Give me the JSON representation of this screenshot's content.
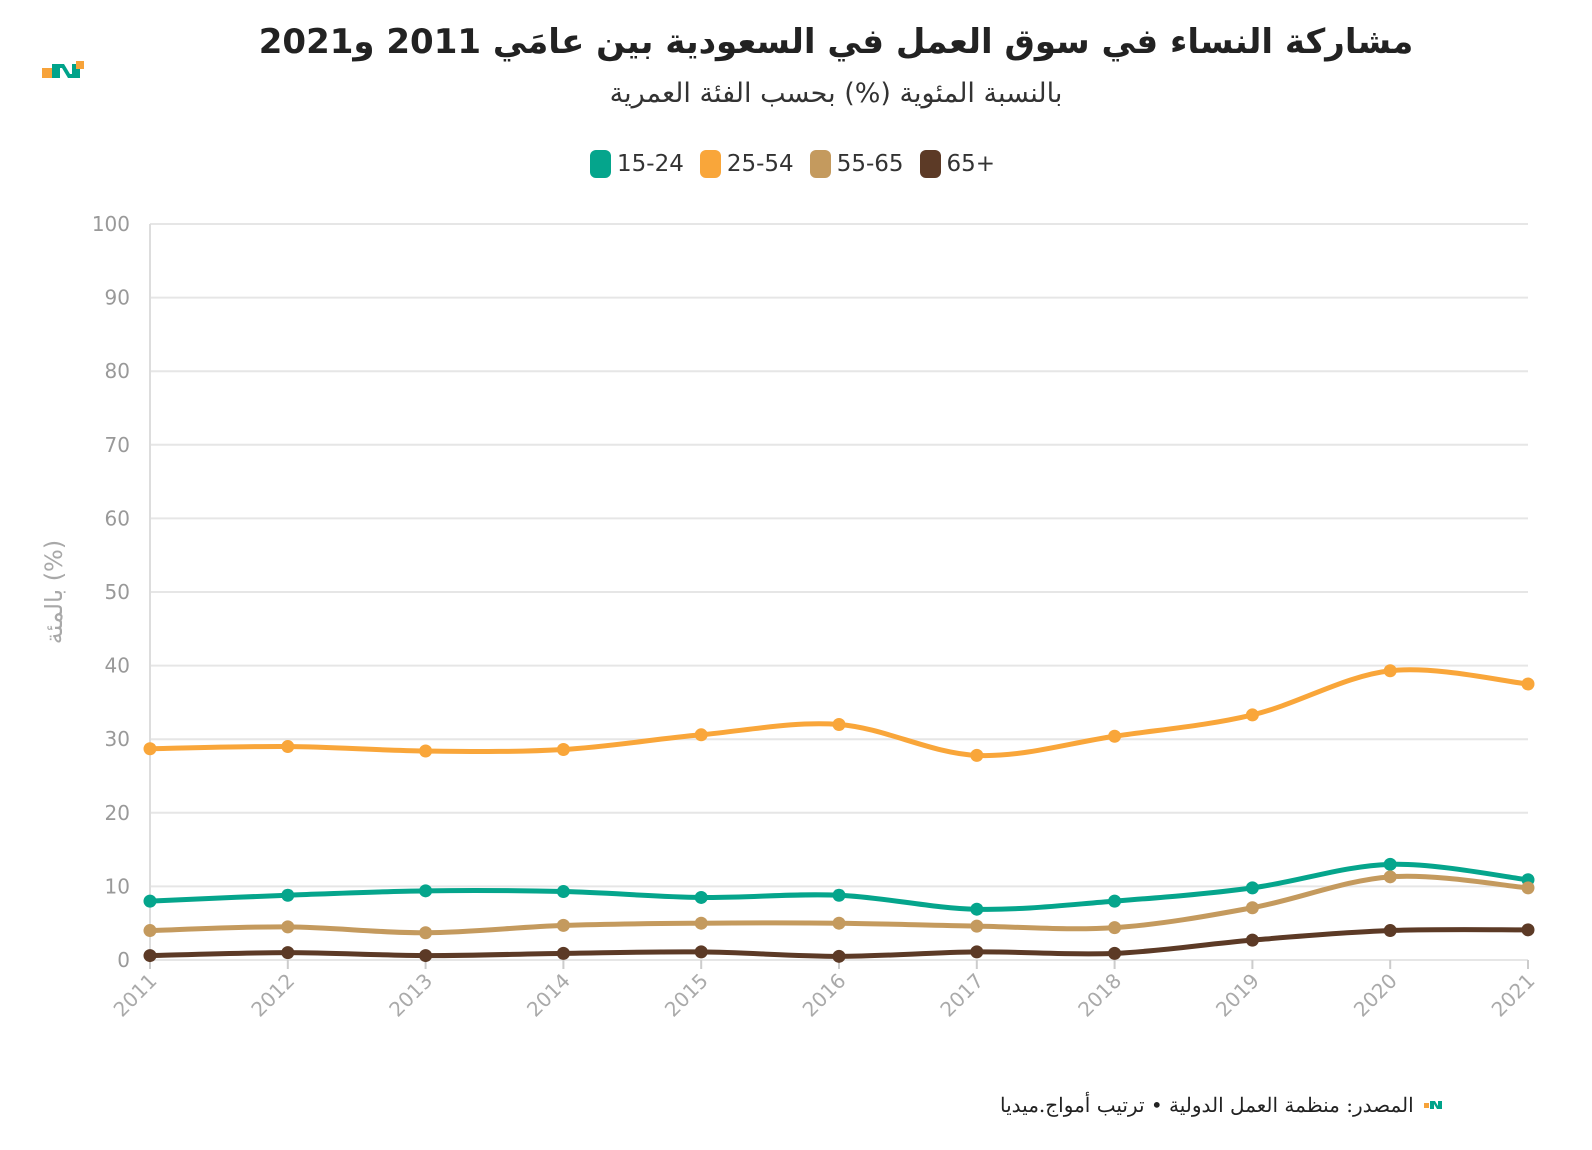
{
  "header": {
    "title": "مشاركة النساء في سوق العمل في السعودية بين عامَي 2011 و2021",
    "subtitle": "بالنسبة المئوية (%) بحسب الفئة العمرية"
  },
  "footer": {
    "source": "المصدر: منظمة العمل الدولية • ترتيب أمواج.ميديا"
  },
  "brand": {
    "logo_name": "amwaj-logo-icon",
    "teal": "#00a38a",
    "orange": "#f7a33a"
  },
  "chart_data": {
    "type": "line",
    "title": "مشاركة النساء في سوق العمل في السعودية بين عامَي 2011 و2021",
    "subtitle": "بالنسبة المئوية (%) بحسب الفئة العمرية",
    "xlabel": "",
    "ylabel": "بالمئة (%)",
    "ylim": [
      0,
      100
    ],
    "yticks": [
      0,
      10,
      20,
      30,
      40,
      50,
      60,
      70,
      80,
      90,
      100
    ],
    "grid": true,
    "legend_position": "top-center",
    "x": [
      "2011",
      "2012",
      "2013",
      "2014",
      "2015",
      "2016",
      "2017",
      "2018",
      "2019",
      "2020",
      "2021"
    ],
    "series": [
      {
        "name": "15-24",
        "color": "#05a58c",
        "values": [
          8.0,
          8.8,
          9.4,
          9.3,
          8.5,
          8.8,
          6.9,
          8.0,
          9.8,
          13.0,
          10.9
        ]
      },
      {
        "name": "25-54",
        "color": "#f9a63a",
        "values": [
          28.7,
          29.0,
          28.4,
          28.6,
          30.6,
          32.0,
          27.8,
          30.4,
          33.3,
          39.3,
          37.5
        ]
      },
      {
        "name": "55-65",
        "color": "#c49a5e",
        "values": [
          4.0,
          4.5,
          3.7,
          4.7,
          5.0,
          5.0,
          4.6,
          4.4,
          7.1,
          11.3,
          9.8
        ]
      },
      {
        "name": "65+",
        "color": "#5c3a26",
        "values": [
          0.6,
          1.0,
          0.6,
          0.9,
          1.1,
          0.5,
          1.1,
          0.9,
          2.7,
          4.0,
          4.1
        ]
      }
    ]
  }
}
